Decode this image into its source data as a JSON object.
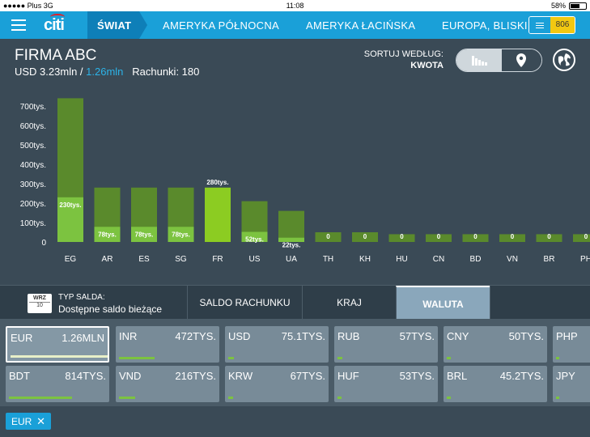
{
  "status_bar": {
    "carrier": "●●●●● Plus  3G",
    "time": "11:08",
    "battery": "58%"
  },
  "nav": {
    "logo": "citi",
    "tabs": [
      {
        "label": "ŚWIAT"
      },
      {
        "label": "AMERYKA PÓŁNOCNA"
      },
      {
        "label": "AMERYKA ŁACIŃSKA"
      },
      {
        "label": "EUROPA, BLISKI"
      }
    ],
    "notification_count": "806"
  },
  "header": {
    "company": "FIRMA ABC",
    "total": "USD 3.23mln",
    "separator": " / ",
    "highlight": "1.26mln",
    "accounts": "Rachunki: 180",
    "sort_label": "SORTUJ WEDŁUG:",
    "sort_value": "KWOTA"
  },
  "chart_data": {
    "type": "bar",
    "categories": [
      "EG",
      "AR",
      "ES",
      "SG",
      "FR",
      "US",
      "UA",
      "TH",
      "KH",
      "HU",
      "CN",
      "BD",
      "VN",
      "BR",
      "PH"
    ],
    "series": [
      {
        "values": [
          740,
          280,
          280,
          280,
          250,
          210,
          160,
          50,
          50,
          40,
          40,
          40,
          40,
          40,
          40
        ]
      },
      {
        "values": [
          230,
          78,
          78,
          78,
          280,
          52,
          22,
          0,
          0,
          0,
          0,
          0,
          0,
          0,
          0
        ]
      }
    ],
    "data_labels": [
      "230tys.",
      "78tys.",
      "78tys.",
      "78tys.",
      "280tys.",
      "52tys.",
      "22tys.",
      "0",
      "0",
      "0",
      "0",
      "0",
      "0",
      "0",
      "0"
    ],
    "yticks": [
      "0",
      "100tys.",
      "200tys.",
      "300tys.",
      "400tys.",
      "500tys.",
      "600tys.",
      "700tys."
    ],
    "ylim": [
      0,
      800
    ],
    "colors": {
      "total": "#5a8a2c",
      "highlight": "#8ccc22",
      "highlight_selected": "#7cc340"
    }
  },
  "bottom_tabs": {
    "calendar_month": "WRZ",
    "calendar_day": "10",
    "typ_label": "TYP SALDA:",
    "typ_value": "Dostępne saldo bieżące",
    "tabs": [
      "SALDO RACHUNKU",
      "KRAJ",
      "WALUTA"
    ]
  },
  "currencies": [
    {
      "code": "EUR",
      "amount": "1.26MLN",
      "level": 1.0
    },
    {
      "code": "INR",
      "amount": "472TYS.",
      "level": 0.37
    },
    {
      "code": "USD",
      "amount": "75.1TYS.",
      "level": 0.06
    },
    {
      "code": "RUB",
      "amount": "57TYS.",
      "level": 0.05
    },
    {
      "code": "CNY",
      "amount": "50TYS.",
      "level": 0.04
    },
    {
      "code": "PHP",
      "amount": "",
      "level": 0.03
    },
    {
      "code": "BDT",
      "amount": "814TYS.",
      "level": 0.65
    },
    {
      "code": "VND",
      "amount": "216TYS.",
      "level": 0.17
    },
    {
      "code": "KRW",
      "amount": "67TYS.",
      "level": 0.05
    },
    {
      "code": "HUF",
      "amount": "53TYS.",
      "level": 0.04
    },
    {
      "code": "BRL",
      "amount": "45.2TYS.",
      "level": 0.04
    },
    {
      "code": "JPY",
      "amount": "",
      "level": 0.03
    }
  ],
  "filter_chip": {
    "label": "EUR",
    "close": "✕"
  }
}
